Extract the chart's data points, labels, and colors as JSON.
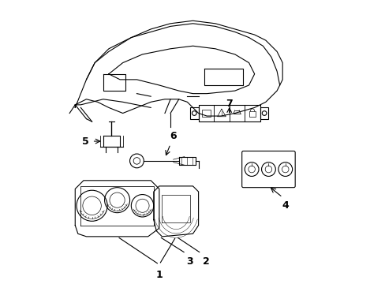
{
  "bg_color": "#ffffff",
  "line_color": "#000000",
  "label_color": "#000000",
  "font_size_labels": 9,
  "fig_width": 4.89,
  "fig_height": 3.6,
  "dpi": 100
}
